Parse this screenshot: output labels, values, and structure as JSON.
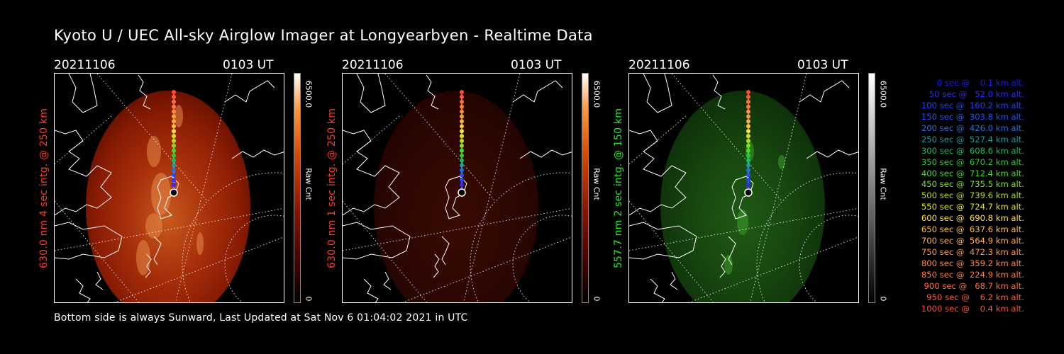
{
  "title": "Kyoto U / UEC All-sky Airglow Imager at Longyearbyen - Realtime Data",
  "footer": "Bottom side is always Sunward, Last Updated at Sat Nov  6 01:04:02 2021 in UTC",
  "panels": [
    {
      "date": "20211106",
      "time": "0103 UT",
      "side_label": "630.0 nm 4 sec intg. @ 250 km",
      "label_color": "#ff3b1f",
      "cbar_max": "6500.0",
      "cbar_min": "0",
      "cbar_unit": "Raw Cnt",
      "colormap": "red",
      "brightness": 1.0
    },
    {
      "date": "20211106",
      "time": "0103 UT",
      "side_label": "630.0 nm 1 sec intg. @ 250 km",
      "label_color": "#ff3b1f",
      "cbar_max": "6500.0",
      "cbar_min": "0",
      "cbar_unit": "Raw Cnt",
      "colormap": "red",
      "brightness": 0.3
    },
    {
      "date": "20211106",
      "time": "0103 UT",
      "side_label": "557.7 nm 2 sec intg. @ 150 km",
      "label_color": "#22ee22",
      "cbar_max": "6500.0",
      "cbar_min": "0",
      "cbar_unit": "Raw Cnt",
      "colormap": "green",
      "brightness": 0.55
    }
  ],
  "trajectory_legend": [
    {
      "text": "   0 sec @    0.1 km alt.",
      "color": "#1a1aff"
    },
    {
      "text": "  50 sec @   52.0 km alt.",
      "color": "#2a2aff"
    },
    {
      "text": " 100 sec @  160.2 km alt.",
      "color": "#2040ff"
    },
    {
      "text": " 150 sec @  303.8 km alt.",
      "color": "#2050ff"
    },
    {
      "text": " 200 sec @  426.0 km alt.",
      "color": "#1f70e0"
    },
    {
      "text": " 250 sec @  527.4 km alt.",
      "color": "#10a0a0"
    },
    {
      "text": " 300 sec @  608.6 km alt.",
      "color": "#10c060"
    },
    {
      "text": " 350 sec @  670.2 km alt.",
      "color": "#20d030"
    },
    {
      "text": " 400 sec @  712.4 km alt.",
      "color": "#40e020"
    },
    {
      "text": " 450 sec @  735.5 km alt.",
      "color": "#80e020"
    },
    {
      "text": " 500 sec @  739.6 km alt.",
      "color": "#b0e010"
    },
    {
      "text": " 550 sec @  724.7 km alt.",
      "color": "#e0e020"
    },
    {
      "text": " 600 sec @  690.8 km alt.",
      "color": "#ffe040"
    },
    {
      "text": " 650 sec @  637.6 km alt.",
      "color": "#ffc040"
    },
    {
      "text": " 700 sec @  564.9 km alt.",
      "color": "#ffb040"
    },
    {
      "text": " 750 sec @  472.3 km alt.",
      "color": "#ff9a3a"
    },
    {
      "text": " 800 sec @  359.2 km alt.",
      "color": "#ff8a3a"
    },
    {
      "text": " 850 sec @  224.9 km alt.",
      "color": "#ff7a38"
    },
    {
      "text": " 900 sec @   68.7 km alt.",
      "color": "#ff6a38"
    },
    {
      "text": " 950 sec @    6.2 km alt.",
      "color": "#ff5a38"
    },
    {
      "text": "1000 sec @    0.4 km alt.",
      "color": "#ff4a38"
    }
  ]
}
